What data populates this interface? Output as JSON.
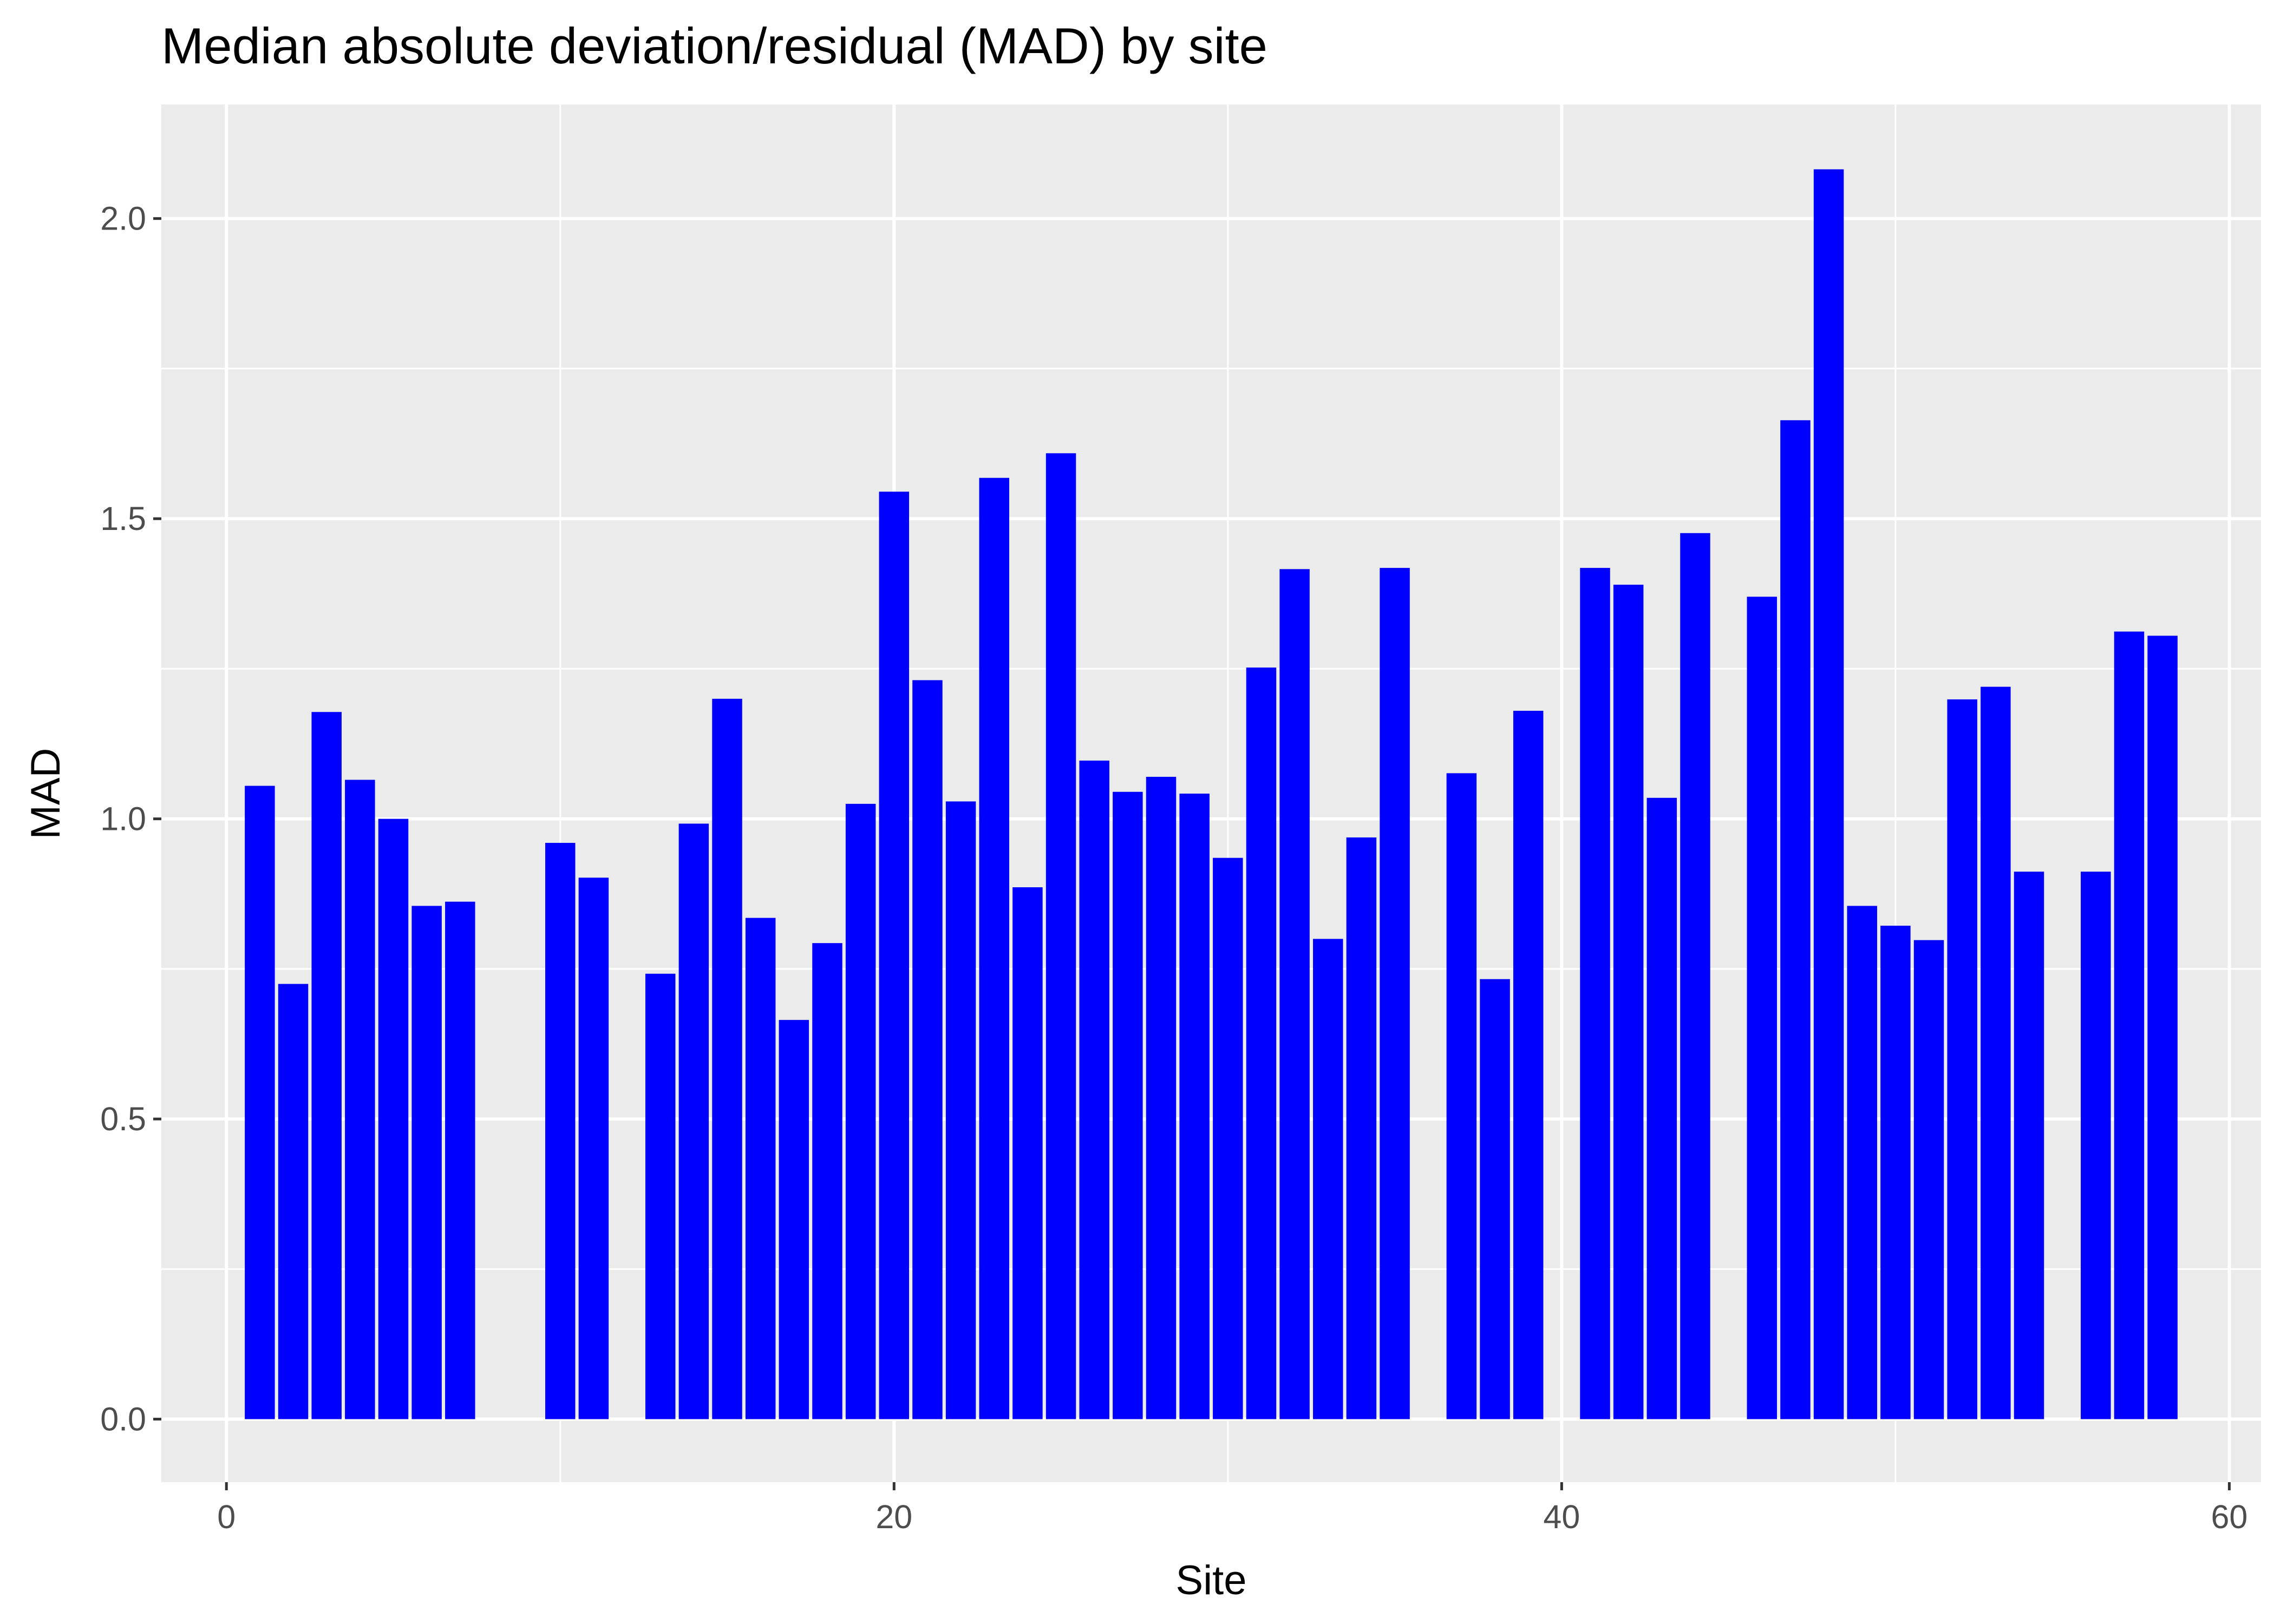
{
  "chart_data": {
    "type": "bar",
    "title": "Median absolute deviation/residual (MAD) by site",
    "xlabel": "Site",
    "ylabel": "MAD",
    "xlim": [
      -1.95,
      60.95
    ],
    "ylim": [
      -0.105,
      2.19
    ],
    "x_ticks": [
      0,
      20,
      40,
      60
    ],
    "x_tick_labels": [
      "0",
      "20",
      "40",
      "60"
    ],
    "x_minor_ticks": [
      10,
      30,
      50
    ],
    "y_ticks": [
      0.0,
      0.5,
      1.0,
      1.5,
      2.0
    ],
    "y_tick_labels": [
      "0.0",
      "0.5",
      "1.0",
      "1.5",
      "2.0"
    ],
    "y_minor_ticks": [
      0.25,
      0.75,
      1.25,
      1.75
    ],
    "grid": true,
    "bar_width": 0.9,
    "colors": {
      "bar": "#0000ff",
      "panel_background": "#ebebeb",
      "grid": "#ffffff",
      "tick": "#333333",
      "tick_label": "#4d4d4d"
    },
    "x": [
      1,
      2,
      3,
      4,
      5,
      6,
      7,
      10,
      11,
      13,
      14,
      15,
      16,
      17,
      18,
      19,
      20,
      21,
      22,
      23,
      24,
      25,
      26,
      27,
      28,
      29,
      30,
      31,
      32,
      33,
      34,
      35,
      37,
      38,
      39,
      41,
      42,
      43,
      44,
      46,
      47,
      48,
      49,
      50,
      51,
      52,
      53,
      54,
      56,
      57,
      58
    ],
    "values": [
      1.055,
      0.725,
      1.178,
      1.065,
      1.0,
      0.855,
      0.862,
      0.96,
      0.902,
      0.742,
      0.992,
      1.2,
      0.835,
      0.665,
      0.793,
      1.025,
      1.545,
      1.231,
      1.029,
      1.568,
      0.886,
      1.609,
      1.097,
      1.045,
      1.07,
      1.042,
      0.935,
      1.252,
      1.416,
      0.8,
      0.969,
      1.418,
      1.076,
      0.733,
      1.18,
      1.418,
      1.39,
      1.035,
      1.476,
      1.37,
      1.664,
      2.082,
      0.855,
      0.822,
      0.798,
      1.199,
      1.22,
      0.912,
      0.912,
      1.312,
      1.305
    ]
  }
}
